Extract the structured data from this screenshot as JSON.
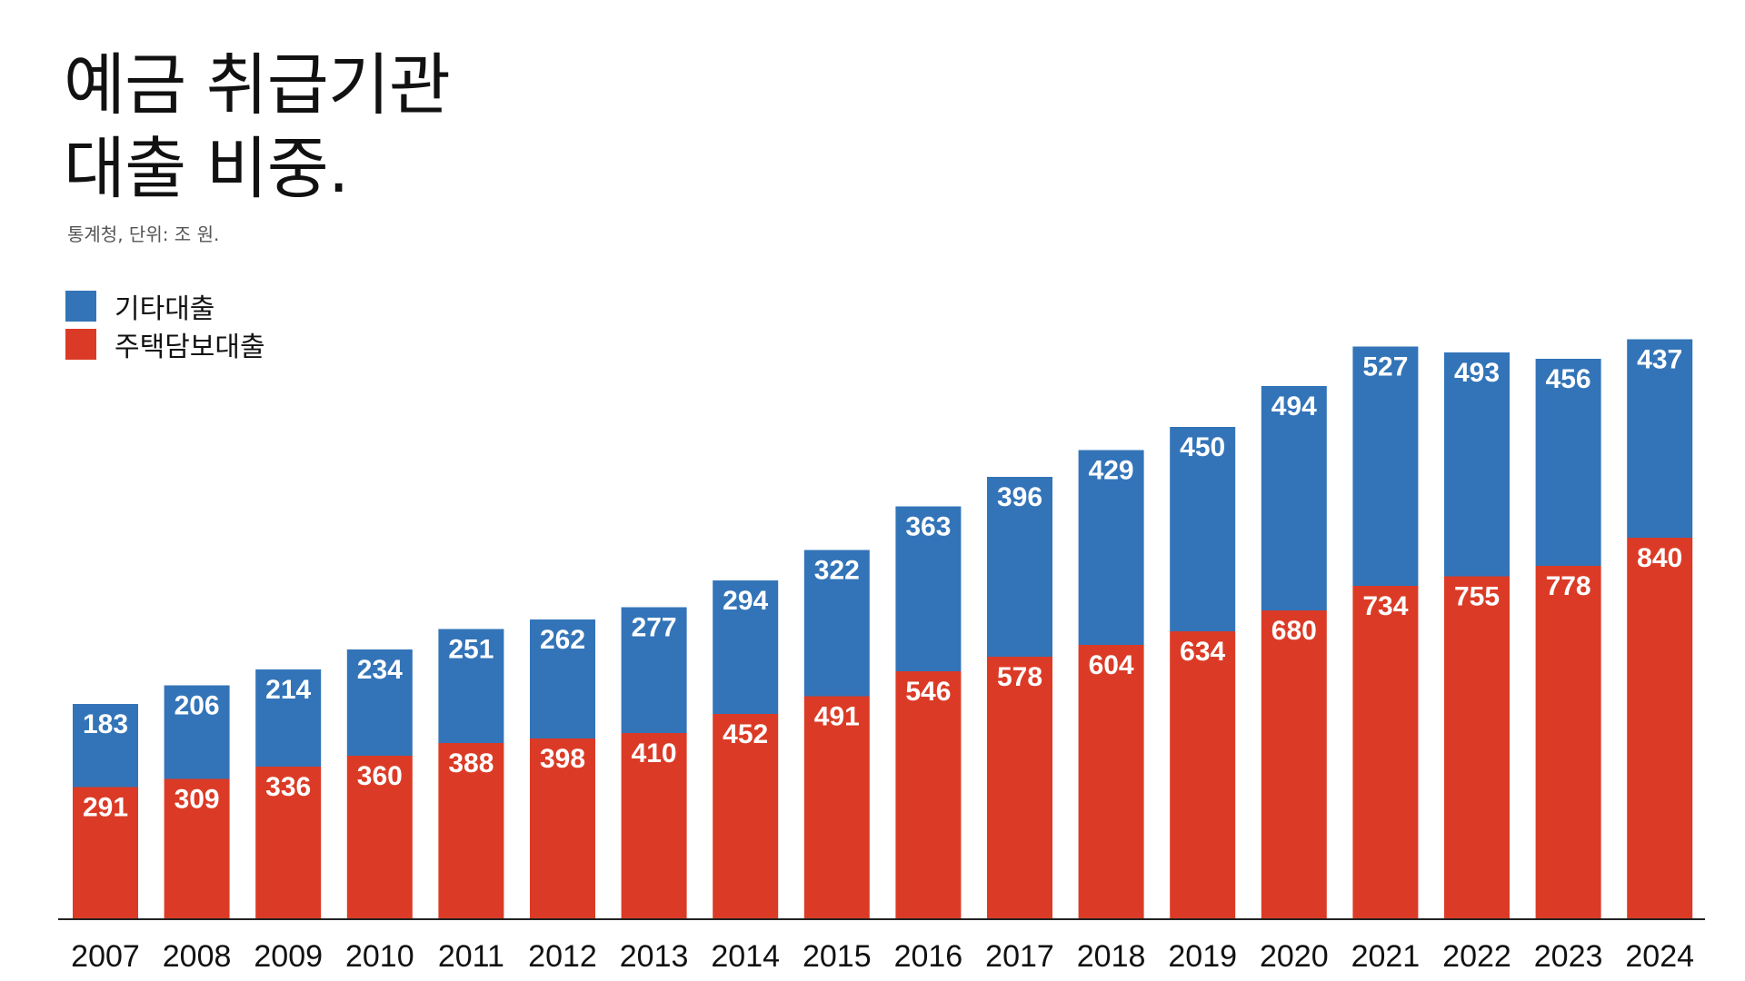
{
  "chart_data": {
    "type": "bar",
    "stacked": true,
    "title_lines": [
      "예금 취급기관",
      "대출 비중."
    ],
    "subtitle": "통계청, 단위: 조 원.",
    "categories": [
      "2007",
      "2008",
      "2009",
      "2010",
      "2011",
      "2012",
      "2013",
      "2014",
      "2015",
      "2016",
      "2017",
      "2018",
      "2019",
      "2020",
      "2021",
      "2022",
      "2023",
      "2024"
    ],
    "series": [
      {
        "name": "주택담보대출",
        "color": "#DB3B26",
        "values": [
          291,
          309,
          336,
          360,
          388,
          398,
          410,
          452,
          491,
          546,
          578,
          604,
          634,
          680,
          734,
          755,
          778,
          840
        ]
      },
      {
        "name": "기타대출",
        "color": "#3374B8",
        "values": [
          183,
          206,
          214,
          234,
          251,
          262,
          277,
          294,
          322,
          363,
          396,
          429,
          450,
          494,
          527,
          493,
          456,
          437
        ]
      }
    ],
    "legend": {
      "position": "top-left"
    },
    "grid": false
  }
}
